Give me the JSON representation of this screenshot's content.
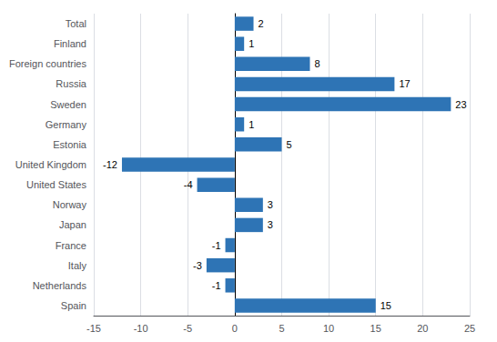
{
  "chart_data": {
    "type": "bar",
    "orientation": "horizontal",
    "categories": [
      "Spain",
      "Netherlands",
      "Italy",
      "France",
      "Japan",
      "Norway",
      "United States",
      "United Kingdom",
      "Estonia",
      "Germany",
      "Sweden",
      "Russia",
      "Foreign countries",
      "Finland",
      "Total"
    ],
    "values": [
      15,
      -1,
      -3,
      -1,
      3,
      3,
      -4,
      -12,
      5,
      1,
      23,
      17,
      8,
      1,
      2
    ],
    "color": "#2E74B5",
    "xlim": [
      -15,
      25
    ],
    "xticks": [
      -15,
      -10,
      -5,
      0,
      5,
      10,
      15,
      20,
      25
    ],
    "grid": true,
    "data_labels": true
  }
}
